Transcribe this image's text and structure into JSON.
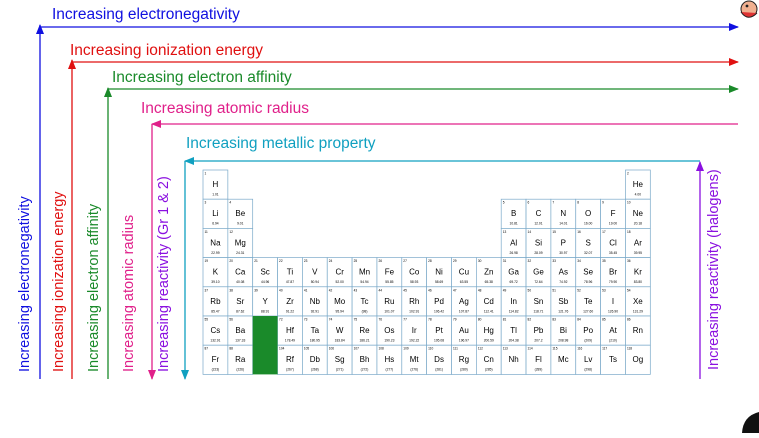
{
  "trends": {
    "electronegativity": {
      "label": "Increasing electronegativity",
      "color": "#1010e0"
    },
    "ionization": {
      "label": "Increasing ionization energy",
      "color": "#e01010"
    },
    "affinity": {
      "label": "Increasing electron affinity",
      "color": "#1a8a2a"
    },
    "radius": {
      "label": "Increasing atomic radius",
      "color": "#e0208a"
    },
    "metallic": {
      "label": "Increasing metallic property",
      "color": "#10a0c0"
    },
    "reactivity_metals": {
      "label": "Increasing reactivity (Gr 1 & 2)",
      "color": "#8a10e0"
    },
    "reactivity_halogens": {
      "label": "Increasing reactivity (halogens)",
      "color": "#8a10e0"
    }
  },
  "table": {
    "highlight_color": "#1a8a2a",
    "elements": [
      {
        "z": "1",
        "s": "H",
        "m": "1.01",
        "r": 1,
        "c": 1
      },
      {
        "z": "2",
        "s": "He",
        "m": "4.00",
        "r": 1,
        "c": 18
      },
      {
        "z": "3",
        "s": "Li",
        "m": "6.94",
        "r": 2,
        "c": 1
      },
      {
        "z": "4",
        "s": "Be",
        "m": "9.01",
        "r": 2,
        "c": 2
      },
      {
        "z": "5",
        "s": "B",
        "m": "10.81",
        "r": 2,
        "c": 13
      },
      {
        "z": "6",
        "s": "C",
        "m": "12.01",
        "r": 2,
        "c": 14
      },
      {
        "z": "7",
        "s": "N",
        "m": "14.01",
        "r": 2,
        "c": 15
      },
      {
        "z": "8",
        "s": "O",
        "m": "16.00",
        "r": 2,
        "c": 16
      },
      {
        "z": "9",
        "s": "F",
        "m": "19.00",
        "r": 2,
        "c": 17
      },
      {
        "z": "10",
        "s": "Ne",
        "m": "20.18",
        "r": 2,
        "c": 18
      },
      {
        "z": "11",
        "s": "Na",
        "m": "22.99",
        "r": 3,
        "c": 1
      },
      {
        "z": "12",
        "s": "Mg",
        "m": "24.31",
        "r": 3,
        "c": 2
      },
      {
        "z": "13",
        "s": "Al",
        "m": "26.98",
        "r": 3,
        "c": 13
      },
      {
        "z": "14",
        "s": "Si",
        "m": "28.09",
        "r": 3,
        "c": 14
      },
      {
        "z": "15",
        "s": "P",
        "m": "30.97",
        "r": 3,
        "c": 15
      },
      {
        "z": "16",
        "s": "S",
        "m": "32.07",
        "r": 3,
        "c": 16
      },
      {
        "z": "17",
        "s": "Cl",
        "m": "35.45",
        "r": 3,
        "c": 17
      },
      {
        "z": "18",
        "s": "Ar",
        "m": "39.95",
        "r": 3,
        "c": 18
      },
      {
        "z": "19",
        "s": "K",
        "m": "39.10",
        "r": 4,
        "c": 1
      },
      {
        "z": "20",
        "s": "Ca",
        "m": "40.08",
        "r": 4,
        "c": 2
      },
      {
        "z": "21",
        "s": "Sc",
        "m": "44.96",
        "r": 4,
        "c": 3
      },
      {
        "z": "22",
        "s": "Ti",
        "m": "47.87",
        "r": 4,
        "c": 4
      },
      {
        "z": "23",
        "s": "V",
        "m": "50.94",
        "r": 4,
        "c": 5
      },
      {
        "z": "24",
        "s": "Cr",
        "m": "52.00",
        "r": 4,
        "c": 6
      },
      {
        "z": "25",
        "s": "Mn",
        "m": "54.94",
        "r": 4,
        "c": 7
      },
      {
        "z": "26",
        "s": "Fe",
        "m": "55.85",
        "r": 4,
        "c": 8
      },
      {
        "z": "27",
        "s": "Co",
        "m": "58.93",
        "r": 4,
        "c": 9
      },
      {
        "z": "28",
        "s": "Ni",
        "m": "58.69",
        "r": 4,
        "c": 10
      },
      {
        "z": "29",
        "s": "Cu",
        "m": "63.55",
        "r": 4,
        "c": 11
      },
      {
        "z": "30",
        "s": "Zn",
        "m": "65.38",
        "r": 4,
        "c": 12
      },
      {
        "z": "31",
        "s": "Ga",
        "m": "69.72",
        "r": 4,
        "c": 13
      },
      {
        "z": "32",
        "s": "Ge",
        "m": "72.64",
        "r": 4,
        "c": 14
      },
      {
        "z": "33",
        "s": "As",
        "m": "74.92",
        "r": 4,
        "c": 15
      },
      {
        "z": "34",
        "s": "Se",
        "m": "78.96",
        "r": 4,
        "c": 16
      },
      {
        "z": "35",
        "s": "Br",
        "m": "79.90",
        "r": 4,
        "c": 17
      },
      {
        "z": "36",
        "s": "Kr",
        "m": "83.80",
        "r": 4,
        "c": 18
      },
      {
        "z": "37",
        "s": "Rb",
        "m": "85.47",
        "r": 5,
        "c": 1
      },
      {
        "z": "38",
        "s": "Sr",
        "m": "87.62",
        "r": 5,
        "c": 2
      },
      {
        "z": "39",
        "s": "Y",
        "m": "88.91",
        "r": 5,
        "c": 3
      },
      {
        "z": "40",
        "s": "Zr",
        "m": "91.22",
        "r": 5,
        "c": 4
      },
      {
        "z": "41",
        "s": "Nb",
        "m": "92.91",
        "r": 5,
        "c": 5
      },
      {
        "z": "42",
        "s": "Mo",
        "m": "95.94",
        "r": 5,
        "c": 6
      },
      {
        "z": "43",
        "s": "Tc",
        "m": "(98)",
        "r": 5,
        "c": 7
      },
      {
        "z": "44",
        "s": "Ru",
        "m": "101.07",
        "r": 5,
        "c": 8
      },
      {
        "z": "45",
        "s": "Rh",
        "m": "102.91",
        "r": 5,
        "c": 9
      },
      {
        "z": "46",
        "s": "Pd",
        "m": "106.42",
        "r": 5,
        "c": 10
      },
      {
        "z": "47",
        "s": "Ag",
        "m": "107.87",
        "r": 5,
        "c": 11
      },
      {
        "z": "48",
        "s": "Cd",
        "m": "112.41",
        "r": 5,
        "c": 12
      },
      {
        "z": "49",
        "s": "In",
        "m": "114.82",
        "r": 5,
        "c": 13
      },
      {
        "z": "50",
        "s": "Sn",
        "m": "118.71",
        "r": 5,
        "c": 14
      },
      {
        "z": "51",
        "s": "Sb",
        "m": "121.76",
        "r": 5,
        "c": 15
      },
      {
        "z": "52",
        "s": "Te",
        "m": "127.60",
        "r": 5,
        "c": 16
      },
      {
        "z": "53",
        "s": "I",
        "m": "126.90",
        "r": 5,
        "c": 17
      },
      {
        "z": "54",
        "s": "Xe",
        "m": "131.29",
        "r": 5,
        "c": 18
      },
      {
        "z": "55",
        "s": "Cs",
        "m": "132.91",
        "r": 6,
        "c": 1
      },
      {
        "z": "56",
        "s": "Ba",
        "m": "137.33",
        "r": 6,
        "c": 2
      },
      {
        "z": "72",
        "s": "Hf",
        "m": "178.49",
        "r": 6,
        "c": 4
      },
      {
        "z": "73",
        "s": "Ta",
        "m": "180.95",
        "r": 6,
        "c": 5
      },
      {
        "z": "74",
        "s": "W",
        "m": "183.84",
        "r": 6,
        "c": 6
      },
      {
        "z": "75",
        "s": "Re",
        "m": "186.21",
        "r": 6,
        "c": 7
      },
      {
        "z": "76",
        "s": "Os",
        "m": "190.23",
        "r": 6,
        "c": 8
      },
      {
        "z": "77",
        "s": "Ir",
        "m": "192.22",
        "r": 6,
        "c": 9
      },
      {
        "z": "78",
        "s": "Pt",
        "m": "195.08",
        "r": 6,
        "c": 10
      },
      {
        "z": "79",
        "s": "Au",
        "m": "196.97",
        "r": 6,
        "c": 11
      },
      {
        "z": "80",
        "s": "Hg",
        "m": "200.59",
        "r": 6,
        "c": 12
      },
      {
        "z": "81",
        "s": "Tl",
        "m": "204.38",
        "r": 6,
        "c": 13
      },
      {
        "z": "82",
        "s": "Pb",
        "m": "207.2",
        "r": 6,
        "c": 14
      },
      {
        "z": "83",
        "s": "Bi",
        "m": "208.98",
        "r": 6,
        "c": 15
      },
      {
        "z": "84",
        "s": "Po",
        "m": "(209)",
        "r": 6,
        "c": 16
      },
      {
        "z": "85",
        "s": "At",
        "m": "(210)",
        "r": 6,
        "c": 17
      },
      {
        "z": "86",
        "s": "Rn",
        "m": "",
        "r": 6,
        "c": 18
      },
      {
        "z": "87",
        "s": "Fr",
        "m": "(223)",
        "r": 7,
        "c": 1
      },
      {
        "z": "88",
        "s": "Ra",
        "m": "(226)",
        "r": 7,
        "c": 2
      },
      {
        "z": "104",
        "s": "Rf",
        "m": "(267)",
        "r": 7,
        "c": 4
      },
      {
        "z": "105",
        "s": "Db",
        "m": "(268)",
        "r": 7,
        "c": 5
      },
      {
        "z": "106",
        "s": "Sg",
        "m": "(271)",
        "r": 7,
        "c": 6
      },
      {
        "z": "107",
        "s": "Bh",
        "m": "(272)",
        "r": 7,
        "c": 7
      },
      {
        "z": "108",
        "s": "Hs",
        "m": "(277)",
        "r": 7,
        "c": 8
      },
      {
        "z": "109",
        "s": "Mt",
        "m": "(276)",
        "r": 7,
        "c": 9
      },
      {
        "z": "110",
        "s": "Ds",
        "m": "(281)",
        "r": 7,
        "c": 10
      },
      {
        "z": "111",
        "s": "Rg",
        "m": "(280)",
        "r": 7,
        "c": 11
      },
      {
        "z": "112",
        "s": "Cn",
        "m": "(285)",
        "r": 7,
        "c": 12
      },
      {
        "z": "113",
        "s": "Nh",
        "m": "",
        "r": 7,
        "c": 13
      },
      {
        "z": "114",
        "s": "Fl",
        "m": "(289)",
        "r": 7,
        "c": 14
      },
      {
        "z": "115",
        "s": "Mc",
        "m": "",
        "r": 7,
        "c": 15
      },
      {
        "z": "116",
        "s": "Lv",
        "m": "(298)",
        "r": 7,
        "c": 16
      },
      {
        "z": "117",
        "s": "Ts",
        "m": "",
        "r": 7,
        "c": 17
      },
      {
        "z": "118",
        "s": "Og",
        "m": "",
        "r": 7,
        "c": 18
      }
    ]
  }
}
